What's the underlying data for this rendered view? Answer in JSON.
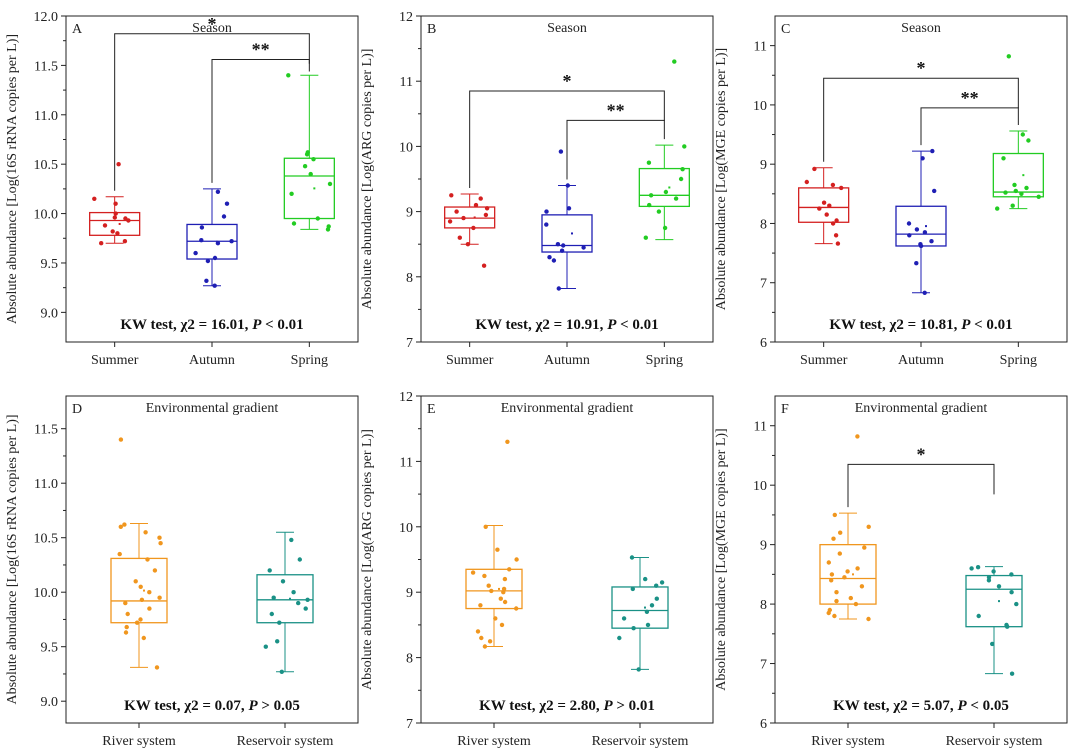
{
  "chart_data": [
    {
      "type": "box",
      "panel": "A",
      "title": "Season",
      "ylabel": "Absolute abundance [Log(16S rRNA copies per L)]",
      "ylim": [
        8.7,
        12.0
      ],
      "yticks": [
        "9.0",
        "9.5",
        "10.0",
        "10.5",
        "11.0",
        "11.5",
        "12.0"
      ],
      "categories": [
        "Summer",
        "Autumn",
        "Spring"
      ],
      "colors": [
        "#d42020",
        "#1f1fb4",
        "#22cc22"
      ],
      "boxes": [
        {
          "min": 9.7,
          "q1": 9.78,
          "median": 9.93,
          "q3": 10.01,
          "max": 10.17
        },
        {
          "min": 9.27,
          "q1": 9.54,
          "median": 9.72,
          "q3": 9.89,
          "max": 10.25
        },
        {
          "min": 9.84,
          "q1": 9.95,
          "median": 10.38,
          "q3": 10.56,
          "max": 11.4
        }
      ],
      "points": [
        [
          9.7,
          9.72,
          9.8,
          9.82,
          9.88,
          9.93,
          9.95,
          9.96,
          10.0,
          10.1,
          10.15,
          10.5
        ],
        [
          9.27,
          9.32,
          9.52,
          9.55,
          9.6,
          9.7,
          9.72,
          9.73,
          9.86,
          9.97,
          10.1,
          10.22
        ],
        [
          9.84,
          9.87,
          9.9,
          9.95,
          10.2,
          10.3,
          10.4,
          10.48,
          10.55,
          10.6,
          10.62,
          11.4
        ]
      ],
      "kw": {
        "prefix": "KW test, χ2 = 16.01, ",
        "p": "P",
        "suffix": " < 0.01"
      },
      "brackets": [
        {
          "from": 0,
          "to": 2,
          "y": 11.82,
          "label": "*"
        },
        {
          "from": 1,
          "to": 2,
          "y": 11.56,
          "label": "**"
        }
      ]
    },
    {
      "type": "box",
      "panel": "B",
      "title": "Season",
      "ylabel": "Absolute abundance [Log(ARG copies per L)]",
      "ylim": [
        7,
        12
      ],
      "yticks": [
        "7",
        "8",
        "9",
        "10",
        "11",
        "12"
      ],
      "categories": [
        "Summer",
        "Autumn",
        "Spring"
      ],
      "colors": [
        "#d42020",
        "#1f1fb4",
        "#22cc22"
      ],
      "boxes": [
        {
          "min": 8.5,
          "q1": 8.75,
          "median": 8.9,
          "q3": 9.07,
          "max": 9.27
        },
        {
          "min": 7.82,
          "q1": 8.38,
          "median": 8.48,
          "q3": 8.95,
          "max": 9.4
        },
        {
          "min": 8.57,
          "q1": 9.08,
          "median": 9.25,
          "q3": 9.66,
          "max": 10.02
        }
      ],
      "points": [
        [
          8.17,
          8.5,
          8.6,
          8.75,
          8.85,
          8.9,
          8.95,
          9.0,
          9.05,
          9.1,
          9.2,
          9.25
        ],
        [
          7.82,
          8.25,
          8.3,
          8.4,
          8.45,
          8.48,
          8.5,
          8.8,
          9.0,
          9.05,
          9.4,
          9.92
        ],
        [
          8.6,
          8.75,
          9.0,
          9.1,
          9.2,
          9.25,
          9.3,
          9.5,
          9.65,
          9.75,
          10.0,
          11.3
        ]
      ],
      "kw": {
        "prefix": "KW test, χ2 = 10.91, ",
        "p": "P",
        "suffix": " < 0.01"
      },
      "brackets": [
        {
          "from": 0,
          "to": 2,
          "y": 10.85,
          "label": "*"
        },
        {
          "from": 1,
          "to": 2,
          "y": 10.4,
          "label": "**"
        }
      ]
    },
    {
      "type": "box",
      "panel": "C",
      "title": "Season",
      "ylabel": "Absolute abundance [Log(MGE copies per L)]",
      "ylim": [
        6,
        11.5
      ],
      "yticks": [
        "6",
        "7",
        "8",
        "9",
        "10",
        "11"
      ],
      "categories": [
        "Summer",
        "Autumn",
        "Spring"
      ],
      "colors": [
        "#d42020",
        "#1f1fb4",
        "#22cc22"
      ],
      "boxes": [
        {
          "min": 7.66,
          "q1": 8.02,
          "median": 8.27,
          "q3": 8.6,
          "max": 8.94
        },
        {
          "min": 6.83,
          "q1": 7.62,
          "median": 7.82,
          "q3": 8.29,
          "max": 9.22
        },
        {
          "min": 8.25,
          "q1": 8.45,
          "median": 8.53,
          "q3": 9.18,
          "max": 9.56
        }
      ],
      "points": [
        [
          7.66,
          7.8,
          8.0,
          8.05,
          8.15,
          8.25,
          8.3,
          8.35,
          8.6,
          8.65,
          8.7,
          8.92
        ],
        [
          6.83,
          7.33,
          7.62,
          7.65,
          7.7,
          7.8,
          7.85,
          7.9,
          8.0,
          8.55,
          9.1,
          9.22
        ],
        [
          8.25,
          8.3,
          8.45,
          8.5,
          8.52,
          8.55,
          8.6,
          8.65,
          9.1,
          9.4,
          9.5,
          10.82
        ]
      ],
      "kw": {
        "prefix": "KW test, χ2 = 10.81, ",
        "p": "P",
        "suffix": " < 0.01"
      },
      "brackets": [
        {
          "from": 0,
          "to": 2,
          "y": 10.45,
          "label": "*"
        },
        {
          "from": 1,
          "to": 2,
          "y": 9.95,
          "label": "**"
        }
      ]
    },
    {
      "type": "box",
      "panel": "D",
      "title": "Environmental gradient",
      "ylabel": "Absolute abundance [Log(16S rRNA copies per L)]",
      "ylim": [
        8.8,
        11.8
      ],
      "yticks": [
        "9.0",
        "9.5",
        "10.0",
        "10.5",
        "11.0",
        "11.5"
      ],
      "categories": [
        "River system",
        "Reservoir system"
      ],
      "colors": [
        "#f0961e",
        "#1a9186"
      ],
      "boxes": [
        {
          "min": 9.31,
          "q1": 9.72,
          "median": 9.92,
          "q3": 10.31,
          "max": 10.63
        },
        {
          "min": 9.27,
          "q1": 9.72,
          "median": 9.93,
          "q3": 10.16,
          "max": 10.55
        }
      ],
      "points": [
        [
          9.31,
          9.58,
          9.63,
          9.68,
          9.72,
          9.75,
          9.8,
          9.85,
          9.9,
          9.93,
          9.95,
          10.0,
          10.05,
          10.1,
          10.2,
          10.3,
          10.35,
          10.45,
          10.5,
          10.55,
          10.6,
          10.62,
          11.4
        ],
        [
          9.27,
          9.5,
          9.55,
          9.72,
          9.8,
          9.85,
          9.9,
          9.93,
          9.95,
          10.0,
          10.1,
          10.2,
          10.3,
          10.48
        ]
      ],
      "kw": {
        "prefix": "KW test, χ2 = 0.07, ",
        "p": "P",
        "suffix": " > 0.05"
      },
      "brackets": []
    },
    {
      "type": "box",
      "panel": "E",
      "title": "Environmental gradient",
      "ylabel": "Absolute abundance [Log(ARG copies per L)]",
      "ylim": [
        7,
        12
      ],
      "yticks": [
        "7",
        "8",
        "9",
        "10",
        "11",
        "12"
      ],
      "categories": [
        "River system",
        "Reservoir system"
      ],
      "colors": [
        "#f0961e",
        "#1a9186"
      ],
      "boxes": [
        {
          "min": 8.17,
          "q1": 8.75,
          "median": 9.02,
          "q3": 9.35,
          "max": 10.02
        },
        {
          "min": 7.82,
          "q1": 8.45,
          "median": 8.72,
          "q3": 9.08,
          "max": 9.53
        }
      ],
      "points": [
        [
          8.17,
          8.25,
          8.3,
          8.4,
          8.5,
          8.6,
          8.75,
          8.8,
          8.85,
          8.9,
          9.0,
          9.02,
          9.05,
          9.1,
          9.2,
          9.25,
          9.3,
          9.35,
          9.5,
          9.65,
          10.0,
          11.3
        ],
        [
          7.82,
          8.3,
          8.45,
          8.5,
          8.6,
          8.7,
          8.8,
          8.9,
          9.05,
          9.1,
          9.15,
          9.2,
          9.53
        ]
      ],
      "kw": {
        "prefix": "KW test, χ2 = 2.80, ",
        "p": "P",
        "suffix": " > 0.01"
      },
      "brackets": []
    },
    {
      "type": "box",
      "panel": "F",
      "title": "Environmental gradient",
      "ylabel": "Absolute abundance [Log(MGE copies per L)]",
      "ylim": [
        6,
        11.5
      ],
      "yticks": [
        "6",
        "7",
        "8",
        "9",
        "10",
        "11"
      ],
      "categories": [
        "River system",
        "Reservoir system"
      ],
      "colors": [
        "#f0961e",
        "#1a9186"
      ],
      "boxes": [
        {
          "min": 7.75,
          "q1": 8.0,
          "median": 8.43,
          "q3": 9.0,
          "max": 9.53
        },
        {
          "min": 6.83,
          "q1": 7.62,
          "median": 8.25,
          "q3": 8.48,
          "max": 8.63
        }
      ],
      "points": [
        [
          7.75,
          7.8,
          7.85,
          7.9,
          8.0,
          8.05,
          8.1,
          8.2,
          8.3,
          8.4,
          8.45,
          8.5,
          8.55,
          8.6,
          8.7,
          8.85,
          8.95,
          9.1,
          9.2,
          9.3,
          9.5,
          10.82
        ],
        [
          6.83,
          7.33,
          7.62,
          7.65,
          7.8,
          8.0,
          8.2,
          8.3,
          8.4,
          8.45,
          8.5,
          8.55,
          8.6,
          8.62
        ]
      ],
      "kw": {
        "prefix": "KW test, χ2 = 5.07, ",
        "p": "P",
        "suffix": " < 0.05"
      },
      "brackets": [
        {
          "from": 0,
          "to": 1,
          "y": 10.35,
          "label": "*"
        }
      ]
    }
  ]
}
